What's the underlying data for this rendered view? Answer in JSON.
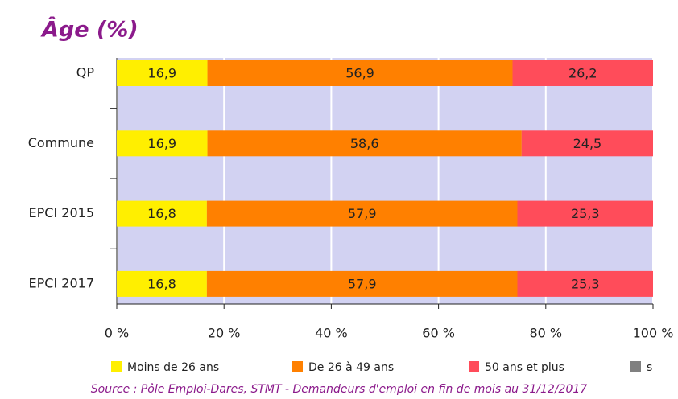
{
  "chart_data": {
    "type": "stacked-bar-horizontal",
    "title": "Âge (%)",
    "categories": [
      "QP",
      "Commune",
      "EPCI 2015",
      "EPCI 2017"
    ],
    "series": [
      {
        "name": "Moins de 26 ans",
        "color": "#ffef00",
        "values": [
          16.9,
          16.9,
          16.8,
          16.8
        ],
        "value_labels": [
          "16,9",
          "16,9",
          "16,8",
          "16,8"
        ]
      },
      {
        "name": "De 26 à 49 ans",
        "color": "#ff8000",
        "values": [
          56.9,
          58.6,
          57.9,
          57.9
        ],
        "value_labels": [
          "56,9",
          "58,6",
          "57,9",
          "57,9"
        ]
      },
      {
        "name": "50 ans et plus",
        "color": "#ff4c5a",
        "values": [
          26.2,
          24.5,
          25.3,
          25.3
        ],
        "value_labels": [
          "26,2",
          "24,5",
          "25,3",
          "25,3"
        ]
      },
      {
        "name": "s",
        "color": "#808080",
        "values": [
          0,
          0,
          0,
          0
        ]
      }
    ],
    "xlim": [
      0,
      100
    ],
    "xticks": [
      {
        "value": 0,
        "label": "0 %"
      },
      {
        "value": 20,
        "label": "20 %"
      },
      {
        "value": 40,
        "label": "40 %"
      },
      {
        "value": 60,
        "label": "60 %"
      },
      {
        "value": 80,
        "label": "80 %"
      },
      {
        "value": 100,
        "label": "100 %"
      }
    ],
    "grid": true,
    "legend": "bottom",
    "source": "Source : Pôle Emploi-Dares, STMT - Demandeurs d'emploi en fin de mois au 31/12/2017"
  }
}
